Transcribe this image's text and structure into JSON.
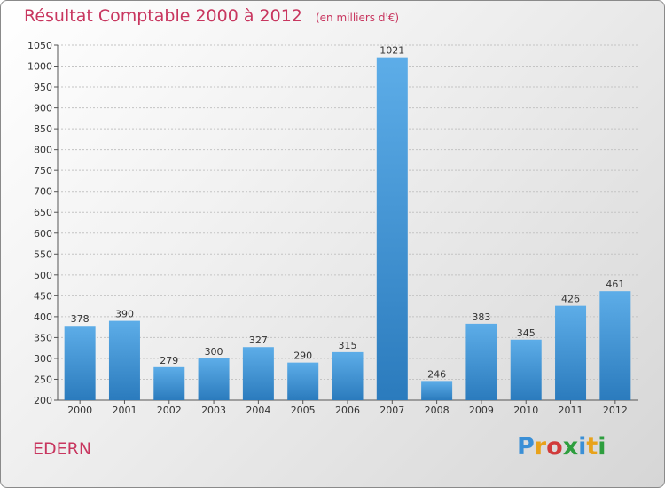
{
  "chart_data": {
    "type": "bar",
    "title": "Résultat Comptable 2000 à 2012",
    "subtitle": "(en milliers d'€)",
    "categories": [
      "2000",
      "2001",
      "2002",
      "2003",
      "2004",
      "2005",
      "2006",
      "2007",
      "2008",
      "2009",
      "2010",
      "2011",
      "2012"
    ],
    "values": [
      378,
      390,
      279,
      300,
      327,
      290,
      315,
      1021,
      246,
      383,
      345,
      426,
      461
    ],
    "ylim": [
      200,
      1050
    ],
    "yticks": [
      200,
      250,
      300,
      350,
      400,
      450,
      500,
      550,
      600,
      650,
      700,
      750,
      800,
      850,
      900,
      950,
      1000,
      1050
    ],
    "xlabel": "",
    "ylabel": "",
    "grid": true,
    "colors": {
      "bar_light": "#5dade8",
      "bar_dark": "#2b7bbd",
      "title": "#c8365f"
    }
  },
  "footer": {
    "commune": "EDERN",
    "logo": [
      "P",
      "r",
      "o",
      "x",
      "i",
      "t",
      "i"
    ],
    "logo_colors": [
      "#3a8fd6",
      "#e8a21a",
      "#d13b3b",
      "#2e9e3e",
      "#3a8fd6",
      "#e8a21a",
      "#2e9e3e"
    ]
  }
}
